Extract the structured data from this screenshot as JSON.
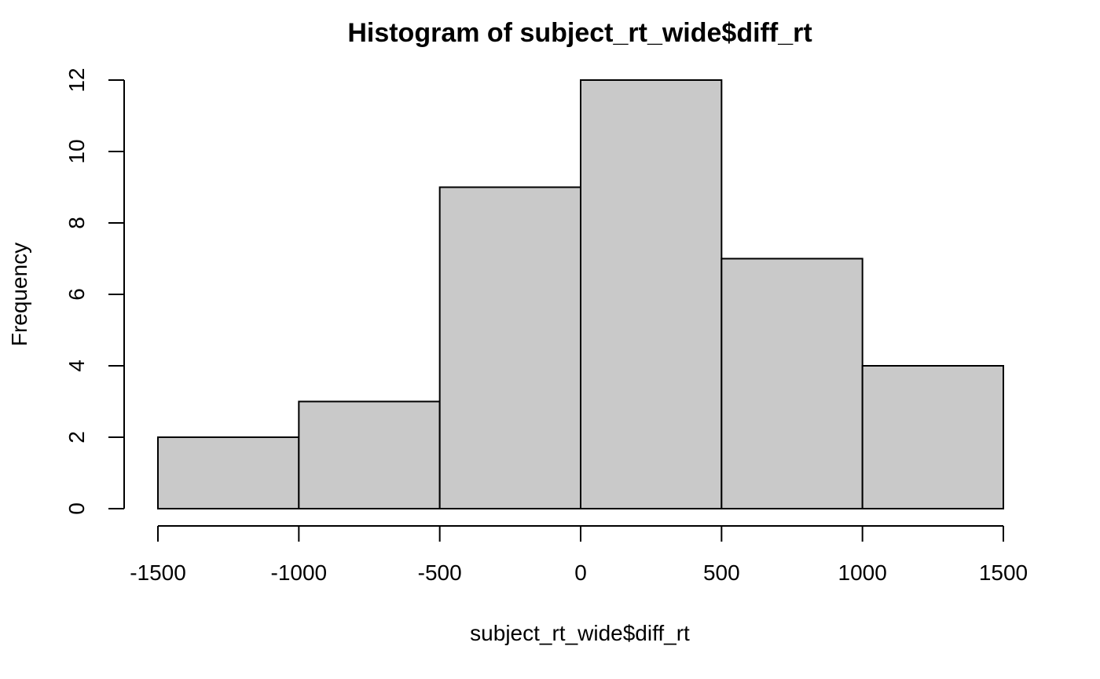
{
  "chart_data": {
    "type": "bar",
    "title": "Histogram of subject_rt_wide$diff_rt",
    "xlabel": "subject_rt_wide$diff_rt",
    "ylabel": "Frequency",
    "bins": [
      {
        "start": -1500,
        "end": -1000,
        "count": 2
      },
      {
        "start": -1000,
        "end": -500,
        "count": 3
      },
      {
        "start": -500,
        "end": 0,
        "count": 9
      },
      {
        "start": 0,
        "end": 500,
        "count": 12
      },
      {
        "start": 500,
        "end": 1000,
        "count": 7
      },
      {
        "start": 1000,
        "end": 1500,
        "count": 4
      }
    ],
    "xlim": [
      -1500,
      1500
    ],
    "ylim": [
      0,
      12
    ],
    "x_ticks": [
      -1500,
      -1000,
      -500,
      0,
      500,
      1000,
      1500
    ],
    "y_ticks": [
      0,
      2,
      4,
      6,
      8,
      10,
      12
    ],
    "bar_color": "#c9c9c9",
    "grid": false,
    "legend": "none"
  }
}
